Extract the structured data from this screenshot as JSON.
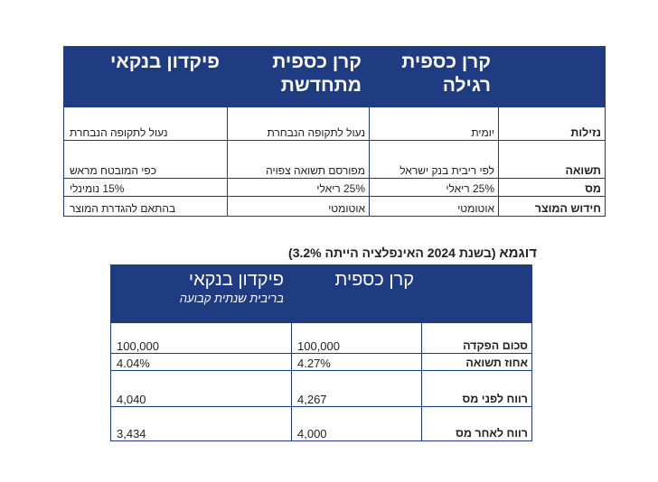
{
  "table1": {
    "headers": [
      "",
      "קרן כספית רגילה",
      "קרן כספית מתחדשת",
      "פיקדון בנקאי"
    ],
    "rows": [
      {
        "label": "נזילות",
        "cells": [
          "יומית",
          "נעול לתקופה הנבחרת",
          "נעול לתקופה הנבחרת"
        ]
      },
      {
        "label": "תשואה",
        "cells": [
          "לפי ריבית בנק ישראל",
          "מפורסם תשואה צפויה",
          "כפי המובטח מראש"
        ]
      },
      {
        "label": "מס",
        "cells": [
          "25% ריאלי",
          "25% ריאלי",
          "15% נומינלי"
        ]
      },
      {
        "label": "חידוש המוצר",
        "cells": [
          "אוטומטי",
          "אוטומטי",
          "בהתאם להגדרת המוצר"
        ]
      }
    ]
  },
  "example": {
    "title": "דוגמא",
    "subtitle": "(בשנת 2024 האינפלציה הייתה 3.2%)"
  },
  "table2": {
    "headers": [
      "",
      "קרן כספית",
      "פיקדון בנקאי"
    ],
    "header_sub": "בריבית שנתית קבועה",
    "rows": [
      {
        "label": "סכום הפקדה",
        "cells": [
          "100,000",
          "100,000"
        ]
      },
      {
        "label": "אחוז תשואה",
        "cells": [
          "4.27%",
          "4.04%"
        ]
      },
      {
        "label": "רווח לפני מס",
        "cells": [
          "4,267",
          "4,040"
        ]
      },
      {
        "label": "רווח לאחר מס",
        "cells": [
          "4,000",
          "3,434"
        ]
      }
    ]
  },
  "colors": {
    "header_bg": "#1f3b82",
    "header_text": "#ffffff",
    "border": "#1f3b82"
  }
}
